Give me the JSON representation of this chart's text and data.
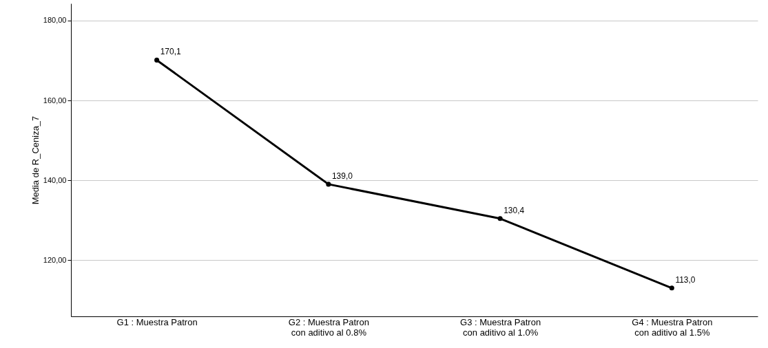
{
  "chart_data": {
    "type": "line",
    "ylabel": "Media de R_Ceniza_7",
    "categories": [
      "G1 : Muestra Patron",
      "G2 : Muestra Patron\ncon aditivo al 0.8%",
      "G3 : Muestra Patron\ncon aditivo al 1.0%",
      "G4 : Muestra Patron\ncon aditivo al 1.5%"
    ],
    "series": [
      {
        "color": "#000000",
        "values": [
          170.1,
          139.0,
          130.4,
          113.0
        ],
        "value_labels": [
          "170,1",
          "139,0",
          "130,4",
          "113,0"
        ]
      }
    ],
    "ylim": [
      105.9,
      184.3
    ],
    "yticks": [
      {
        "value": 120,
        "label": "120,00"
      },
      {
        "value": 140,
        "label": "140,00"
      },
      {
        "value": 160,
        "label": "160,00"
      },
      {
        "value": 180,
        "label": "180,00"
      }
    ],
    "grid": "y",
    "marker": "circle",
    "line_style": "solid"
  }
}
